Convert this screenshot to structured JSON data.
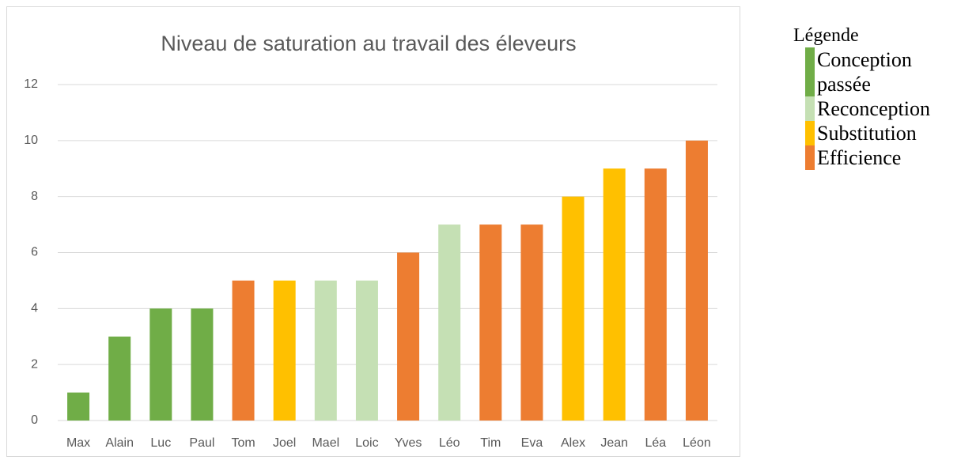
{
  "chart_data": {
    "type": "bar",
    "title": "Niveau de saturation au travail des éleveurs",
    "categories": [
      "Max",
      "Alain",
      "Luc",
      "Paul",
      "Tom",
      "Joel",
      "Mael",
      "Loic",
      "Yves",
      "Léo",
      "Tim",
      "Eva",
      "Alex",
      "Jean",
      "Léa",
      "Léon"
    ],
    "values": [
      1,
      3,
      4,
      4,
      5,
      5,
      5,
      5,
      6,
      7,
      7,
      7,
      8,
      9,
      9,
      10
    ],
    "colors": [
      "#70ad47",
      "#70ad47",
      "#70ad47",
      "#70ad47",
      "#ed7d31",
      "#ffc000",
      "#c5e0b4",
      "#c5e0b4",
      "#ed7d31",
      "#c5e0b4",
      "#ed7d31",
      "#ed7d31",
      "#ffc000",
      "#ffc000",
      "#ed7d31",
      "#ed7d31"
    ],
    "legend_title": "Légende",
    "legend": [
      {
        "name": "Conception passée",
        "color": "#70ad47"
      },
      {
        "name": "Reconception",
        "color": "#c5e0b4"
      },
      {
        "name": "Substitution",
        "color": "#ffc000"
      },
      {
        "name": "Efficience",
        "color": "#ed7d31"
      }
    ],
    "ylim": [
      0,
      12
    ],
    "yticks": [
      0,
      2,
      4,
      6,
      8,
      10,
      12
    ],
    "grid": true
  }
}
